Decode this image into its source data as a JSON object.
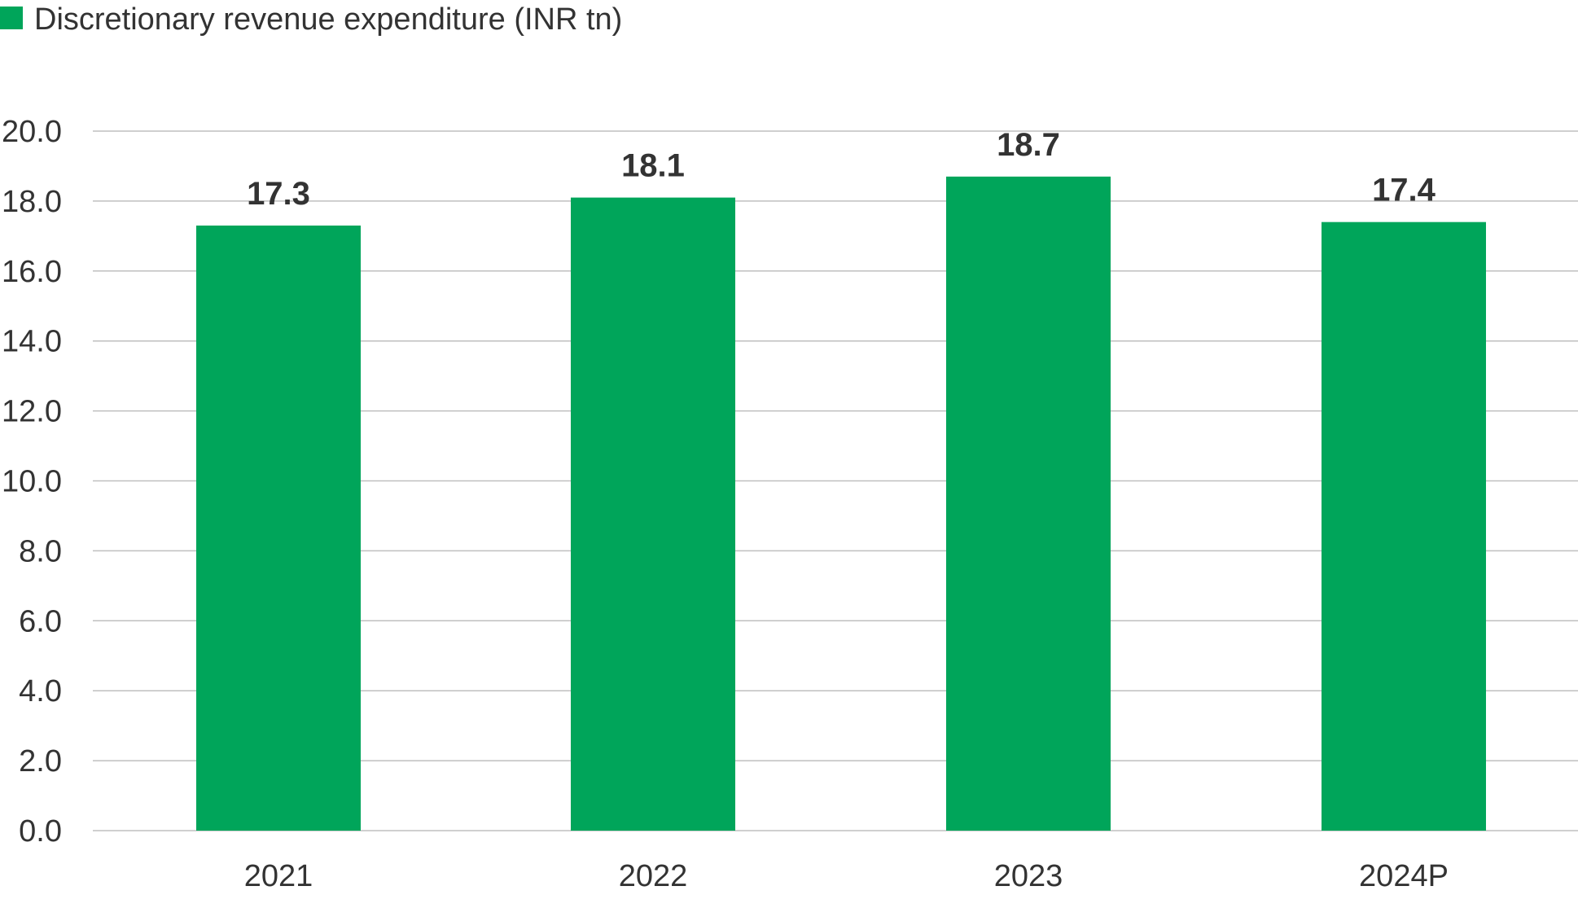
{
  "chart_data": {
    "type": "bar",
    "categories": [
      "2021",
      "2022",
      "2023",
      "2024P"
    ],
    "series": [
      {
        "name": "Discretionary revenue expenditure (INR tn)",
        "values": [
          17.3,
          18.1,
          18.7,
          17.4
        ],
        "color": "#00A55A"
      }
    ],
    "data_labels": [
      "17.3",
      "18.1",
      "18.7",
      "17.4"
    ],
    "y_ticks": [
      "0.0",
      "2.0",
      "4.0",
      "6.0",
      "8.0",
      "10.0",
      "12.0",
      "14.0",
      "16.0",
      "18.0",
      "20.0"
    ],
    "ylim": [
      0,
      20
    ],
    "y_tick_step": 2,
    "grid": true,
    "gridline_color": "#BFBFBF",
    "legend_position": "top-left",
    "title": "",
    "xlabel": "",
    "ylabel": ""
  }
}
